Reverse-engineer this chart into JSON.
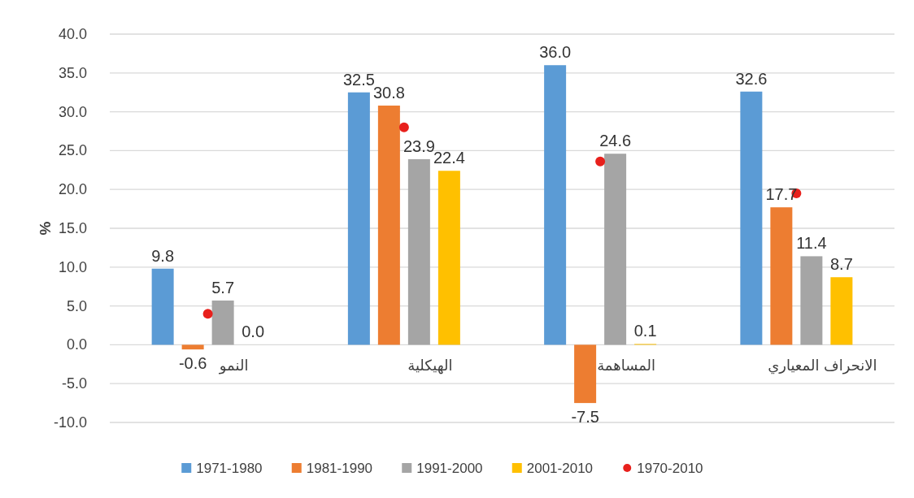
{
  "chart_data": {
    "type": "bar",
    "ylabel": "%",
    "categories": [
      "النمو",
      "الهيكلية",
      "المساهمة",
      "الانحراف المعياري"
    ],
    "series": [
      {
        "name": "1971-1980",
        "color": "#5b9bd5",
        "values": [
          9.8,
          32.5,
          36.0,
          32.6
        ],
        "value_labels": [
          "9.8",
          "32.5",
          "36.0",
          "32.6"
        ]
      },
      {
        "name": "1981-1990",
        "color": "#ed7d31",
        "values": [
          -0.6,
          30.8,
          -7.5,
          17.7
        ],
        "value_labels": [
          "-0.6",
          "30.8",
          "-7.5",
          "17.7"
        ]
      },
      {
        "name": "1991-2000",
        "color": "#a5a5a5",
        "values": [
          5.7,
          23.9,
          24.6,
          11.4
        ],
        "value_labels": [
          "5.7",
          "23.9",
          "24.6",
          "11.4"
        ]
      },
      {
        "name": "2001-2010",
        "color": "#ffc000",
        "values": [
          0.0,
          22.4,
          0.1,
          8.7
        ],
        "value_labels": [
          "0.0",
          "22.4",
          "0.1",
          "8.7"
        ]
      },
      {
        "name": "1970-2010",
        "type": "scatter",
        "color": "#e8201c",
        "marker": "circle",
        "values": [
          4.0,
          28.0,
          23.6,
          19.5
        ]
      }
    ],
    "ylim": [
      -10,
      40
    ],
    "yticks": [
      {
        "value": -10,
        "label": "-10.0"
      },
      {
        "value": -5,
        "label": "-5.0"
      },
      {
        "value": 0,
        "label": "0.0"
      },
      {
        "value": 5,
        "label": "5.0"
      },
      {
        "value": 10,
        "label": "10.0"
      },
      {
        "value": 15,
        "label": "15.0"
      },
      {
        "value": 20,
        "label": "20.0"
      },
      {
        "value": 25,
        "label": "25.0"
      },
      {
        "value": 30,
        "label": "30.0"
      },
      {
        "value": 35,
        "label": "35.0"
      },
      {
        "value": 40,
        "label": "40.0"
      }
    ],
    "grid": "y",
    "legend": "bottom"
  }
}
